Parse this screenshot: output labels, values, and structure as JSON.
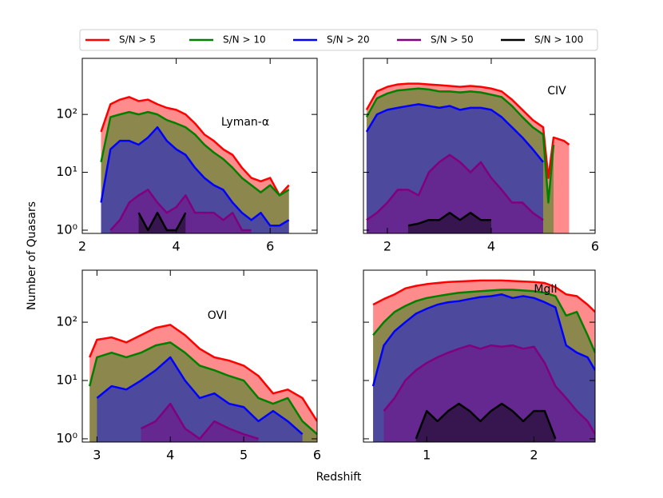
{
  "chart_data": [
    {
      "type": "area",
      "label": "Lyman-α",
      "log_y": true,
      "ylabel": "Number of Quasars",
      "x": [
        2.4,
        2.6,
        2.8,
        3.0,
        3.2,
        3.4,
        3.6,
        3.8,
        4.0,
        4.2,
        4.4,
        4.6,
        4.8,
        5.0,
        5.2,
        5.4,
        5.6,
        5.8,
        6.0,
        6.2,
        6.4
      ],
      "xlim": [
        2,
        7
      ],
      "xticks": [
        2,
        4,
        6
      ],
      "ylim": [
        0.88,
        930
      ],
      "yticks": [
        {
          "value": 1,
          "label": "10⁰"
        },
        {
          "value": 10,
          "label": "10¹"
        },
        {
          "value": 100,
          "label": "10²"
        }
      ],
      "series": [
        {
          "name": "S/N > 5",
          "color": "#ff0000",
          "values": [
            50,
            150,
            180,
            200,
            170,
            180,
            150,
            130,
            120,
            100,
            70,
            45,
            35,
            25,
            20,
            12,
            8,
            7,
            8,
            4,
            6
          ]
        },
        {
          "name": "S/N > 10",
          "color": "#008000",
          "values": [
            15,
            90,
            100,
            110,
            100,
            110,
            100,
            80,
            70,
            60,
            45,
            30,
            22,
            17,
            12,
            8,
            6,
            4.5,
            6,
            4,
            5
          ]
        },
        {
          "name": "S/N > 20",
          "color": "#0000ff",
          "values": [
            3,
            25,
            35,
            35,
            30,
            40,
            60,
            35,
            25,
            20,
            12,
            8,
            6,
            5,
            3,
            2,
            1.5,
            2,
            1.2,
            1.2,
            1.5
          ]
        },
        {
          "name": "S/N > 50",
          "color": "#800080",
          "values": [
            null,
            1,
            1.5,
            3,
            4,
            5,
            3,
            2,
            2.5,
            4,
            2,
            2,
            2,
            1.5,
            2,
            1,
            1,
            null,
            null,
            null,
            null
          ]
        },
        {
          "name": "S/N > 100",
          "color": "#000000",
          "values": [
            null,
            null,
            null,
            null,
            2,
            1,
            2,
            1,
            1,
            2,
            null,
            null,
            null,
            null,
            null,
            null,
            null,
            null,
            null,
            null,
            null
          ]
        }
      ]
    },
    {
      "type": "area",
      "label": "CIV",
      "log_y": true,
      "x": [
        1.6,
        1.8,
        2.0,
        2.2,
        2.4,
        2.6,
        2.8,
        3.0,
        3.2,
        3.4,
        3.6,
        3.8,
        4.0,
        4.2,
        4.4,
        4.6,
        4.8,
        5.0,
        5.1,
        5.2,
        5.4,
        5.5
      ],
      "xlim": [
        1.54,
        6
      ],
      "xticks": [
        2,
        4,
        6
      ],
      "ylim": [
        0.88,
        930
      ],
      "series": [
        {
          "color": "#ff0000",
          "values": [
            120,
            250,
            300,
            330,
            340,
            340,
            330,
            320,
            310,
            300,
            310,
            300,
            280,
            250,
            180,
            120,
            80,
            60,
            8,
            40,
            35,
            30
          ]
        },
        {
          "color": "#008000",
          "values": [
            90,
            190,
            230,
            260,
            270,
            280,
            270,
            250,
            250,
            240,
            250,
            240,
            220,
            200,
            140,
            90,
            60,
            45,
            3,
            30,
            null,
            null
          ]
        },
        {
          "color": "#0000ff",
          "values": [
            50,
            100,
            120,
            130,
            140,
            150,
            140,
            130,
            140,
            120,
            130,
            130,
            120,
            90,
            60,
            40,
            25,
            15,
            null,
            null,
            null,
            null
          ]
        },
        {
          "color": "#800080",
          "values": [
            1.5,
            2,
            3,
            5,
            5,
            4,
            10,
            15,
            20,
            15,
            10,
            15,
            8,
            5,
            3,
            3,
            2,
            1.5,
            null,
            null,
            null,
            null
          ]
        },
        {
          "color": "#000000",
          "values": [
            null,
            null,
            null,
            null,
            1.2,
            1.3,
            1.5,
            1.5,
            2,
            1.5,
            2,
            1.5,
            1.5,
            null,
            null,
            null,
            null,
            null,
            null,
            null,
            null,
            null
          ]
        }
      ]
    },
    {
      "type": "area",
      "label": "OVI",
      "log_y": true,
      "x": [
        2.9,
        3.0,
        3.2,
        3.4,
        3.6,
        3.8,
        4.0,
        4.2,
        4.4,
        4.6,
        4.8,
        5.0,
        5.2,
        5.4,
        5.6,
        5.8,
        6.0
      ],
      "xlim": [
        2.8,
        6
      ],
      "xticks": [
        3,
        4,
        5,
        6
      ],
      "ylim": [
        0.88,
        780
      ],
      "yticks": [
        {
          "value": 1,
          "label": "10⁰"
        },
        {
          "value": 10,
          "label": "10¹"
        },
        {
          "value": 100,
          "label": "10²"
        }
      ],
      "series": [
        {
          "color": "#ff0000",
          "values": [
            25,
            50,
            55,
            45,
            60,
            80,
            90,
            60,
            35,
            25,
            22,
            18,
            12,
            6,
            7,
            5,
            2
          ]
        },
        {
          "color": "#008000",
          "values": [
            8,
            25,
            30,
            25,
            30,
            40,
            45,
            30,
            18,
            15,
            12,
            10,
            5,
            4,
            5,
            2,
            1.2
          ]
        },
        {
          "color": "#0000ff",
          "values": [
            null,
            5,
            8,
            7,
            10,
            15,
            25,
            10,
            5,
            6,
            4,
            3.5,
            2,
            3,
            2,
            1.2,
            null
          ]
        },
        {
          "color": "#800080",
          "values": [
            null,
            null,
            null,
            null,
            1.5,
            2,
            4,
            1.5,
            1,
            2,
            1.5,
            1.2,
            1,
            null,
            null,
            null,
            null
          ]
        }
      ]
    },
    {
      "type": "area",
      "label": "MgII",
      "log_y": true,
      "xlabel": "Redshift",
      "x": [
        0.5,
        0.6,
        0.7,
        0.8,
        0.9,
        1.0,
        1.1,
        1.2,
        1.3,
        1.4,
        1.5,
        1.6,
        1.7,
        1.8,
        1.9,
        2.0,
        2.1,
        2.2,
        2.3,
        2.4,
        2.5,
        2.57
      ],
      "xlim": [
        0.41,
        2.57
      ],
      "xticks": [
        1,
        2
      ],
      "ylim": [
        0.88,
        780
      ],
      "series": [
        {
          "color": "#ff0000",
          "values": [
            200,
            250,
            300,
            380,
            420,
            450,
            470,
            490,
            500,
            510,
            520,
            520,
            520,
            510,
            500,
            490,
            470,
            400,
            300,
            280,
            200,
            150
          ]
        },
        {
          "color": "#008000",
          "values": [
            60,
            100,
            150,
            190,
            230,
            260,
            280,
            300,
            320,
            330,
            340,
            350,
            360,
            360,
            350,
            340,
            320,
            280,
            130,
            150,
            60,
            30
          ]
        },
        {
          "color": "#0000ff",
          "values": [
            8,
            40,
            70,
            100,
            140,
            170,
            200,
            220,
            230,
            250,
            270,
            280,
            300,
            260,
            280,
            260,
            220,
            180,
            40,
            30,
            25,
            15
          ]
        },
        {
          "color": "#800080",
          "values": [
            null,
            3,
            5,
            10,
            15,
            20,
            25,
            30,
            35,
            40,
            35,
            40,
            38,
            40,
            35,
            38,
            20,
            8,
            5,
            3,
            2,
            1.2
          ]
        },
        {
          "color": "#000000",
          "values": [
            null,
            null,
            null,
            null,
            1,
            3,
            2,
            3,
            4,
            3,
            2,
            3,
            4,
            3,
            2,
            3,
            3,
            1,
            null,
            null,
            null,
            null
          ]
        }
      ]
    }
  ]
}
